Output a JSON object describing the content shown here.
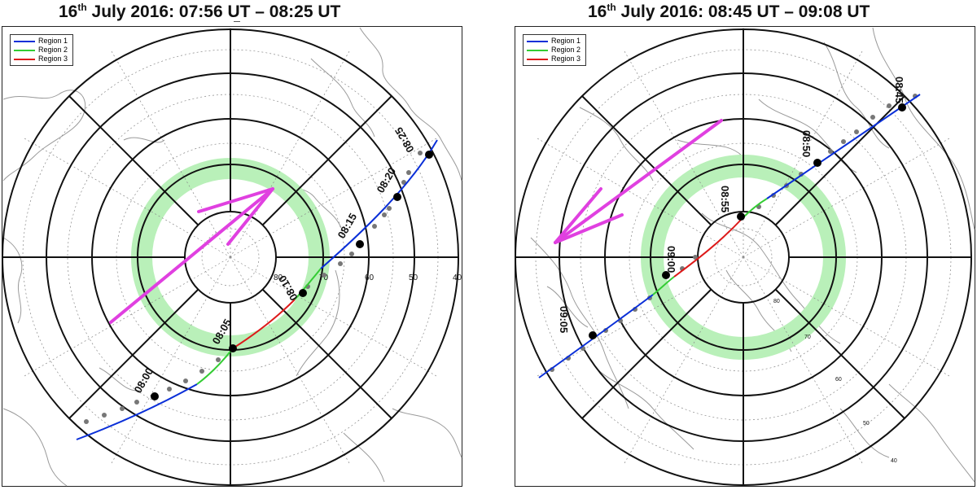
{
  "colors": {
    "region1": "#0a2fd8",
    "region2": "#33cc33",
    "region3": "#dd1a1a",
    "arrow": "#e040e0",
    "ring": "#b9f0b9",
    "coast": "#9a9a9a"
  },
  "legend": [
    {
      "label": "Region 1",
      "color": "#0a2fd8"
    },
    {
      "label": "Region 2",
      "color": "#33cc33"
    },
    {
      "label": "Region 3",
      "color": "#dd1a1a"
    }
  ],
  "panels": [
    {
      "title_day": "16",
      "title_sup": "th",
      "title_rest": " July 2016: 07:56 UT – 08:25 UT",
      "lat_labels": [
        "80",
        "70",
        "60",
        "50",
        "40"
      ],
      "times": [
        "08:00",
        "08:05",
        "08:10",
        "08:15",
        "08:20",
        "08:25"
      ]
    },
    {
      "title_day": "16",
      "title_sup": "th",
      "title_rest": " July 2016: 08:45 UT – 09:08 UT",
      "lat_labels": [
        "80",
        "70",
        "60",
        "50",
        "40"
      ],
      "times": [
        "08:45",
        "08:50",
        "08:55",
        "09:00",
        "09:05"
      ]
    }
  ]
}
